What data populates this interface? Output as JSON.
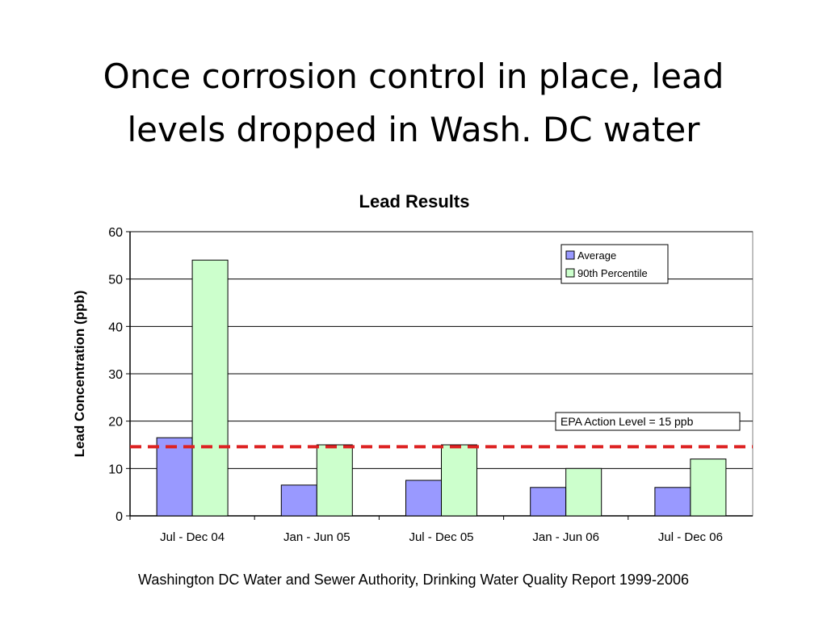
{
  "slide": {
    "title_line1": "Once corrosion control in place, lead",
    "title_line2": "levels dropped in Wash. DC water",
    "caption": "Washington DC Water and Sewer Authority, Drinking Water Quality Report 1999-2006"
  },
  "chart_data": {
    "type": "bar",
    "title": "Lead Results",
    "xlabel": "",
    "ylabel": "Lead Concentration (ppb)",
    "categories": [
      "Jul - Dec 04",
      "Jan - Jun 05",
      "Jul - Dec 05",
      "Jan - Jun 06",
      "Jul - Dec 06"
    ],
    "series": [
      {
        "name": "Average",
        "values": [
          16.5,
          6.5,
          7.5,
          6.0,
          6.0
        ],
        "color": "#9999ff"
      },
      {
        "name": "90th Percentile",
        "values": [
          54,
          15,
          15,
          10,
          12
        ],
        "color": "#ccffcc"
      }
    ],
    "ylim": [
      0,
      60
    ],
    "yticks": [
      0,
      10,
      20,
      30,
      40,
      50,
      60
    ],
    "grid": true,
    "legend_position": "top-right",
    "reference_line": {
      "label": "EPA Action Level = 15 ppb",
      "value": 14.6,
      "color": "#dd2222",
      "style": "dashed"
    }
  }
}
